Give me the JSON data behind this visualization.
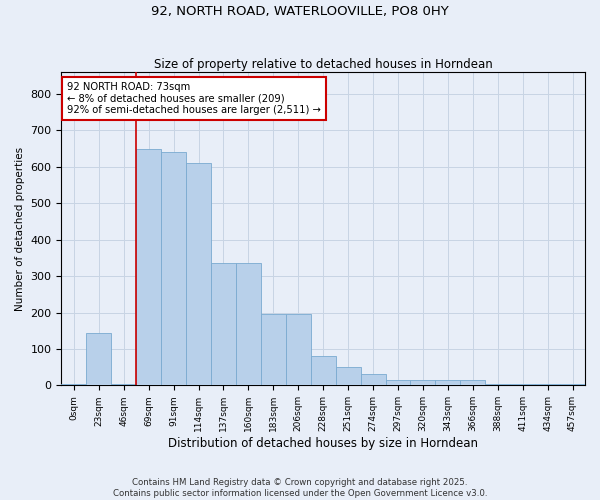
{
  "title": "92, NORTH ROAD, WATERLOOVILLE, PO8 0HY",
  "subtitle": "Size of property relative to detached houses in Horndean",
  "xlabel": "Distribution of detached houses by size in Horndean",
  "ylabel": "Number of detached properties",
  "bar_labels": [
    "0sqm",
    "23sqm",
    "46sqm",
    "69sqm",
    "91sqm",
    "114sqm",
    "137sqm",
    "160sqm",
    "183sqm",
    "206sqm",
    "228sqm",
    "251sqm",
    "274sqm",
    "297sqm",
    "320sqm",
    "343sqm",
    "366sqm",
    "388sqm",
    "411sqm",
    "434sqm",
    "457sqm"
  ],
  "bar_values": [
    5,
    145,
    5,
    650,
    640,
    610,
    335,
    335,
    195,
    195,
    80,
    50,
    30,
    15,
    15,
    15,
    15,
    5,
    5,
    5,
    5
  ],
  "bar_color": "#b8d0ea",
  "bar_edge_color": "#7aaad0",
  "vline_x": 3.0,
  "vline_color": "#cc0000",
  "annotation_text": "92 NORTH ROAD: 73sqm\n← 8% of detached houses are smaller (209)\n92% of semi-detached houses are larger (2,511) →",
  "annotation_box_color": "#cc0000",
  "annotation_bg_color": "#ffffff",
  "ylim": [
    0,
    860
  ],
  "yticks": [
    0,
    100,
    200,
    300,
    400,
    500,
    600,
    700,
    800
  ],
  "grid_color": "#c8d4e4",
  "footnote": "Contains HM Land Registry data © Crown copyright and database right 2025.\nContains public sector information licensed under the Open Government Licence v3.0.",
  "bg_color": "#e8eef8"
}
